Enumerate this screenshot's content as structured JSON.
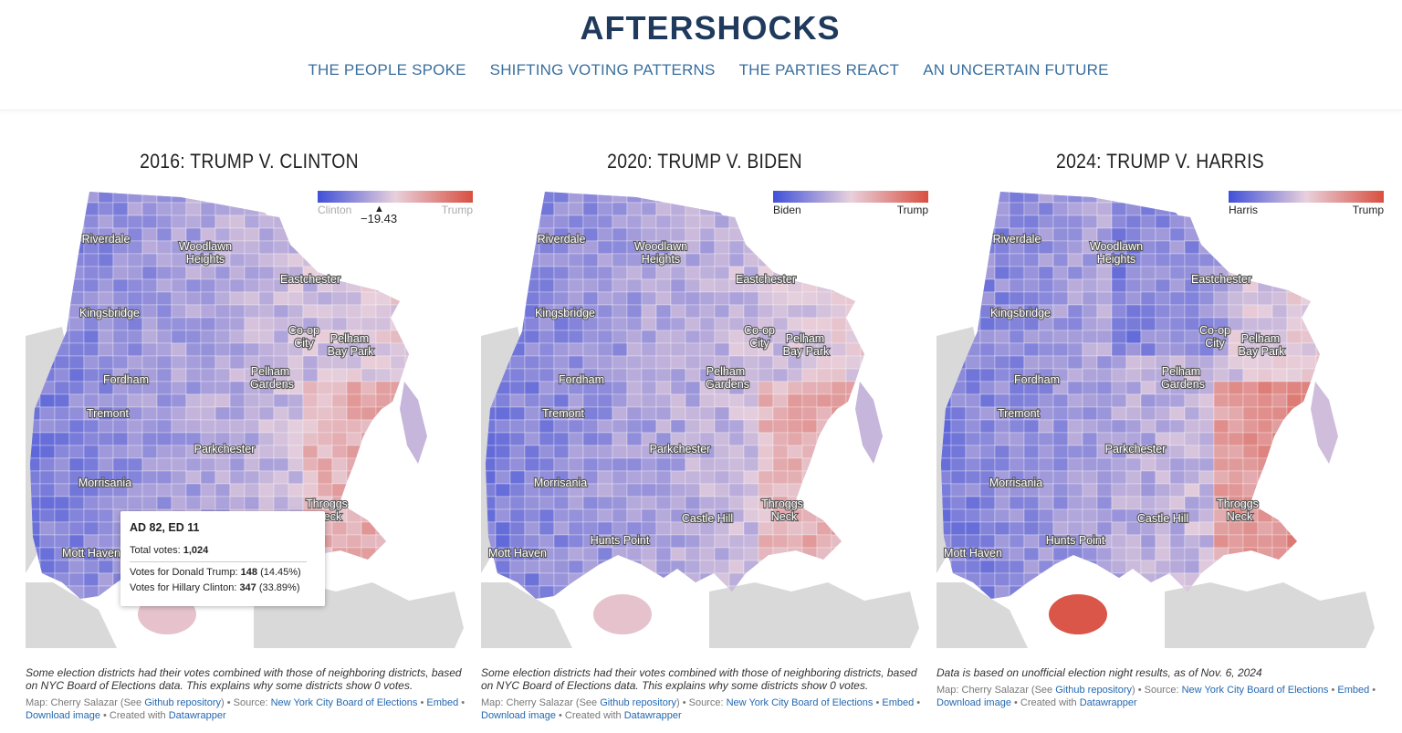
{
  "header": {
    "title": "AFTERSHOCKS",
    "nav": [
      "THE PEOPLE SPOKE",
      "SHIFTING VOTING PATTERNS",
      "THE PARTIES REACT",
      "AN UNCERTAIN FUTURE"
    ]
  },
  "colors": {
    "dem": "#4050d8",
    "neutral": "#e8d0dc",
    "rep": "#d85040",
    "land": "#d9d9d9",
    "title": "#1f3a5c",
    "nav": "#3a6f9f",
    "link": "#2468b0"
  },
  "maps": [
    {
      "title": "2016: TRUMP V. CLINTON",
      "legend_left": "Clinton",
      "legend_right": "Trump",
      "legend_value": "−19.43",
      "notes": "Some election districts had their votes combined with those of neighboring districts, based on NYC Board of Elections data. This explains why some districts show 0 votes.",
      "credit_map": "Map: Cherry Salazar (See ",
      "credit_repo": "Github repository",
      "credit_source": ") • Source: ",
      "credit_source_link": "New York City Board of Elections",
      "credit_embed": "Embed",
      "credit_download": "Download image",
      "credit_created": " • Created with ",
      "credit_dw": "Datawrapper",
      "places": [
        "Riverdale",
        "Woodlawn",
        "Heights",
        "Eastchester",
        "Kingsbridge",
        "Co-op",
        "City",
        "Pelham",
        "Bay Park",
        "Fordham",
        "Pelham",
        "Gardens",
        "Tremont",
        "Parkchester",
        "Morrisania",
        "Throggs",
        "Neck",
        "Mott Haven"
      ]
    },
    {
      "title": "2020: TRUMP V. BIDEN",
      "legend_left": "Biden",
      "legend_right": "Trump",
      "notes": "Some election districts had their votes combined with those of neighboring districts, based on NYC Board of Elections data. This explains why some districts show 0 votes.",
      "credit_map": "Map: Cherry Salazar (See ",
      "credit_repo": "Github repository",
      "credit_source": ") • Source: ",
      "credit_source_link": "New York City Board of Elections",
      "credit_embed": "Embed",
      "credit_download": "Download image",
      "credit_created": " • Created with ",
      "credit_dw": "Datawrapper",
      "places": [
        "Riverdale",
        "Woodlawn",
        "Heights",
        "Eastchester",
        "Kingsbridge",
        "Co-op",
        "City",
        "Pelham",
        "Bay Park",
        "Fordham",
        "Pelham",
        "Gardens",
        "Tremont",
        "Parkchester",
        "Morrisania",
        "Throggs",
        "Neck",
        "Castle Hill",
        "Hunts Point",
        "Mott Haven"
      ]
    },
    {
      "title": "2024: TRUMP V. HARRIS",
      "legend_left": "Harris",
      "legend_right": "Trump",
      "notes": "Data is based on unofficial election night results, as of Nov. 6, 2024",
      "credit_map": "Map: Cherry Salazar (See ",
      "credit_repo": "Github repository",
      "credit_source": ") • Source: ",
      "credit_source_link": "New York City Board of Elections",
      "credit_embed": "Embed",
      "credit_download": "Download image",
      "credit_created": " • Created with ",
      "credit_dw": "Datawrapper",
      "places": [
        "Riverdale",
        "Woodlawn",
        "Heights",
        "Eastchester",
        "Kingsbridge",
        "Co-op",
        "City",
        "Pelham",
        "Bay Park",
        "Fordham",
        "Pelham",
        "Gardens",
        "Tremont",
        "Parkchester",
        "Morrisania",
        "Throggs",
        "Neck",
        "Castle Hill",
        "Hunts Point",
        "Mott Haven"
      ]
    }
  ],
  "tooltip": {
    "title": "AD 82, ED 11",
    "total_label": "Total votes: ",
    "total_value": "1,024",
    "trump_label": "Votes for Donald Trump: ",
    "trump_value": "148",
    "trump_pct": " (14.45%)",
    "clinton_label": "Votes for Hillary Clinton: ",
    "clinton_value": "347",
    "clinton_pct": " (33.89%)"
  }
}
